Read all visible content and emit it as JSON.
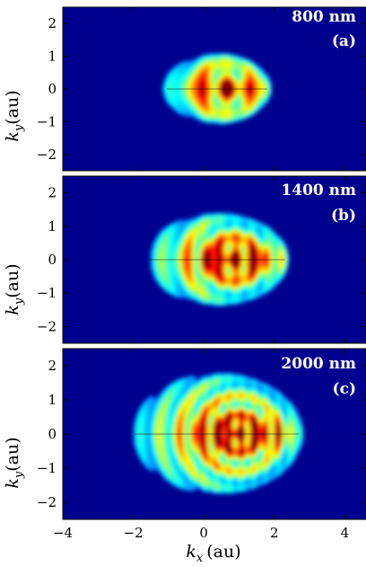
{
  "figure": {
    "xlabel_var": "k",
    "xlabel_sub": "x",
    "xlabel_unit": "(au)",
    "ylabel_var": "k",
    "ylabel_sub": "y",
    "ylabel_unit": "(au)",
    "colormap": "jet",
    "background_color": "#00008f"
  },
  "chart_data": [
    {
      "type": "heatmap",
      "wavelength_label": "800 nm",
      "panel_label": "(a)",
      "xlim": [
        -4,
        4.6
      ],
      "ylim": [
        -2.5,
        2.5
      ],
      "yticks": [
        "−2",
        "−1",
        "0",
        "1",
        "2"
      ],
      "spectrum_extent": {
        "kx_min": -1.2,
        "kx_max": 1.9,
        "ky_max": 1.1
      }
    },
    {
      "type": "heatmap",
      "wavelength_label": "1400 nm",
      "panel_label": "(b)",
      "xlim": [
        -4,
        4.6
      ],
      "ylim": [
        -2.5,
        2.5
      ],
      "yticks": [
        "−2",
        "−1",
        "0",
        "1",
        "2"
      ],
      "spectrum_extent": {
        "kx_min": -1.7,
        "kx_max": 2.4,
        "ky_max": 1.4
      }
    },
    {
      "type": "heatmap",
      "wavelength_label": "2000 nm",
      "panel_label": "(c)",
      "xlim": [
        -4,
        4.6
      ],
      "ylim": [
        -2.5,
        2.5
      ],
      "yticks": [
        "−2",
        "−1",
        "0",
        "1",
        "2"
      ],
      "xticks": [
        "−4",
        "−2",
        "0",
        "2",
        "4"
      ],
      "spectrum_extent": {
        "kx_min": -2.1,
        "kx_max": 2.8,
        "ky_max": 1.8
      }
    }
  ]
}
